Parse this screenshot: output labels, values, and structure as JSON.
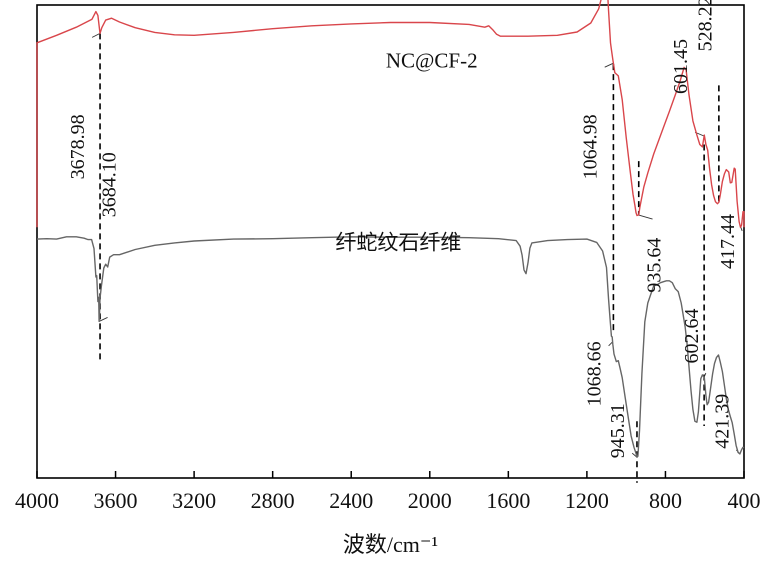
{
  "chart_data": {
    "type": "line",
    "xlabel": "波数/cm⁻¹",
    "ylabel": "",
    "xlim": [
      4000,
      400
    ],
    "x_reversed": true,
    "xticks": [
      4000,
      3600,
      3200,
      2800,
      2400,
      2000,
      1600,
      1200,
      800,
      400
    ],
    "xtick_labels": [
      "4000",
      "3600",
      "3200",
      "2800",
      "2400",
      "2000",
      "1600",
      "1200",
      "800",
      "400"
    ],
    "ylim": [
      0,
      100
    ],
    "grid": false,
    "colors": {
      "series_top": "#d9464b",
      "series_bottom": "#666666",
      "axis": "#000000",
      "marker_line": "#000000"
    },
    "series": [
      {
        "name": "NC@CF-2",
        "color": "#d9464b",
        "points": [
          [
            4000,
            53
          ],
          [
            4000,
            92
          ],
          [
            3900,
            93.6
          ],
          [
            3800,
            95.3
          ],
          [
            3720,
            97
          ],
          [
            3700,
            98.6
          ],
          [
            3690,
            97.8
          ],
          [
            3679,
            94
          ],
          [
            3670,
            95.2
          ],
          [
            3650,
            96.8
          ],
          [
            3620,
            97.2
          ],
          [
            3580,
            96.4
          ],
          [
            3500,
            95.2
          ],
          [
            3400,
            94.2
          ],
          [
            3300,
            93.7
          ],
          [
            3200,
            93.6
          ],
          [
            3000,
            94.2
          ],
          [
            2800,
            95
          ],
          [
            2600,
            95.6
          ],
          [
            2400,
            96
          ],
          [
            2200,
            96.3
          ],
          [
            2000,
            96.3
          ],
          [
            1800,
            95.9
          ],
          [
            1720,
            95.3
          ],
          [
            1700,
            95.6
          ],
          [
            1680,
            94.8
          ],
          [
            1660,
            93.8
          ],
          [
            1640,
            93.4
          ],
          [
            1500,
            93.4
          ],
          [
            1350,
            93.6
          ],
          [
            1250,
            94.3
          ],
          [
            1180,
            96.2
          ],
          [
            1140,
            99.2
          ],
          [
            1120,
            102.4
          ],
          [
            1108,
            104.3
          ],
          [
            1100,
            104.8
          ],
          [
            1096,
            103.8
          ],
          [
            1090,
            99
          ],
          [
            1080,
            92
          ],
          [
            1075,
            90.6
          ],
          [
            1068,
            88.5
          ],
          [
            1062,
            86.9
          ],
          [
            1058,
            85.7
          ],
          [
            1040,
            85
          ],
          [
            1020,
            80
          ],
          [
            1000,
            72
          ],
          [
            980,
            65
          ],
          [
            965,
            60
          ],
          [
            955,
            57.5
          ],
          [
            950,
            56.1
          ],
          [
            945,
            55.5
          ],
          [
            936,
            55.6
          ],
          [
            930,
            57.3
          ],
          [
            910,
            61.5
          ],
          [
            890,
            64.5
          ],
          [
            860,
            68.5
          ],
          [
            820,
            73
          ],
          [
            780,
            77.5
          ],
          [
            750,
            81
          ],
          [
            725,
            84
          ],
          [
            705,
            86.8
          ],
          [
            695,
            86.3
          ],
          [
            680,
            81
          ],
          [
            660,
            75.5
          ],
          [
            640,
            72.5
          ],
          [
            625,
            70.5
          ],
          [
            612,
            70
          ],
          [
            602,
            72.5
          ],
          [
            594,
            70.5
          ],
          [
            585,
            69.3
          ],
          [
            575,
            65.4
          ],
          [
            565,
            62
          ],
          [
            555,
            59.7
          ],
          [
            545,
            58.4
          ],
          [
            535,
            58
          ],
          [
            528,
            58.3
          ],
          [
            520,
            60
          ],
          [
            510,
            62.7
          ],
          [
            500,
            64.3
          ],
          [
            490,
            65.2
          ],
          [
            478,
            64.7
          ],
          [
            470,
            62.4
          ],
          [
            462,
            62.5
          ],
          [
            450,
            65.5
          ],
          [
            445,
            65.3
          ],
          [
            435,
            58.5
          ],
          [
            425,
            54.2
          ],
          [
            418,
            53
          ],
          [
            412,
            53.5
          ],
          [
            405,
            56.3
          ],
          [
            400,
            56.3
          ],
          [
            400,
            53
          ]
        ]
      },
      {
        "name": "纤蛇纹石纤维",
        "color": "#666666",
        "points": [
          [
            4000,
            50.5
          ],
          [
            3950,
            50.6
          ],
          [
            3900,
            50.5
          ],
          [
            3850,
            51
          ],
          [
            3800,
            51
          ],
          [
            3760,
            50.7
          ],
          [
            3740,
            50.4
          ],
          [
            3722,
            50.4
          ],
          [
            3710,
            48.5
          ],
          [
            3700,
            42.5
          ],
          [
            3696,
            42.8
          ],
          [
            3690,
            37.3
          ],
          [
            3686,
            38.2
          ],
          [
            3684,
            33.1
          ],
          [
            3682,
            34.5
          ],
          [
            3679,
            38
          ],
          [
            3672,
            40.6
          ],
          [
            3660,
            44.4
          ],
          [
            3650,
            45.2
          ],
          [
            3640,
            44.6
          ],
          [
            3630,
            46.7
          ],
          [
            3610,
            47.2
          ],
          [
            3580,
            47.2
          ],
          [
            3500,
            48.3
          ],
          [
            3400,
            49.2
          ],
          [
            3300,
            49.7
          ],
          [
            3200,
            50.1
          ],
          [
            3000,
            50.5
          ],
          [
            2800,
            50.6
          ],
          [
            2600,
            50.8
          ],
          [
            2400,
            51
          ],
          [
            2200,
            50.9
          ],
          [
            2000,
            50.9
          ],
          [
            1800,
            50.8
          ],
          [
            1650,
            50.6
          ],
          [
            1560,
            50.2
          ],
          [
            1540,
            49
          ],
          [
            1530,
            47.1
          ],
          [
            1520,
            44
          ],
          [
            1510,
            43.2
          ],
          [
            1500,
            45.5
          ],
          [
            1490,
            48.6
          ],
          [
            1480,
            49.7
          ],
          [
            1400,
            50.2
          ],
          [
            1300,
            50.4
          ],
          [
            1200,
            50.5
          ],
          [
            1150,
            49.8
          ],
          [
            1120,
            48
          ],
          [
            1100,
            44.5
          ],
          [
            1090,
            38
          ],
          [
            1082,
            33.5
          ],
          [
            1075,
            30
          ],
          [
            1071,
            29.8
          ],
          [
            1068,
            28.3
          ],
          [
            1062,
            26.2
          ],
          [
            1050,
            24.6
          ],
          [
            1040,
            24.8
          ],
          [
            1030,
            23
          ],
          [
            1020,
            21.2
          ],
          [
            1005,
            17
          ],
          [
            990,
            13
          ],
          [
            975,
            8.9
          ],
          [
            960,
            6.5
          ],
          [
            950,
            5.2
          ],
          [
            945,
            4.4
          ],
          [
            940,
            4.6
          ],
          [
            932,
            10
          ],
          [
            920,
            22
          ],
          [
            905,
            33
          ],
          [
            890,
            37
          ],
          [
            875,
            38.8
          ],
          [
            860,
            40.6
          ],
          [
            845,
            40.8
          ],
          [
            825,
            41.3
          ],
          [
            810,
            41.5
          ],
          [
            795,
            41.7
          ],
          [
            780,
            41.7
          ],
          [
            765,
            41.3
          ],
          [
            750,
            40
          ],
          [
            735,
            39.4
          ],
          [
            720,
            37
          ],
          [
            700,
            32
          ],
          [
            690,
            28.5
          ],
          [
            680,
            23.5
          ],
          [
            670,
            18.5
          ],
          [
            660,
            14.5
          ],
          [
            650,
            12
          ],
          [
            640,
            11.8
          ],
          [
            632,
            14
          ],
          [
            620,
            21
          ],
          [
            612,
            21.8
          ],
          [
            602,
            21.3
          ],
          [
            594,
            17.5
          ],
          [
            588,
            15.5
          ],
          [
            580,
            16
          ],
          [
            570,
            19
          ],
          [
            560,
            22
          ],
          [
            550,
            24.2
          ],
          [
            540,
            25.5
          ],
          [
            530,
            26
          ],
          [
            520,
            24.4
          ],
          [
            510,
            22.5
          ],
          [
            500,
            19.6
          ],
          [
            490,
            16.8
          ],
          [
            480,
            14.5
          ],
          [
            470,
            13
          ],
          [
            460,
            11.7
          ],
          [
            450,
            9.3
          ],
          [
            440,
            6.9
          ],
          [
            430,
            5.4
          ],
          [
            421,
            5.1
          ],
          [
            412,
            6
          ],
          [
            405,
            6.5
          ],
          [
            400,
            6.4
          ]
        ]
      }
    ],
    "series_labels": [
      {
        "text": "NC@CF-2",
        "series": 0
      },
      {
        "text": "纤蛇纹石纤维",
        "series": 1
      }
    ],
    "annotations": [
      {
        "text": "3678.98",
        "series": 0,
        "x": 3679,
        "marker_y": [
          94,
          25
        ],
        "text_anchor_x": 3760,
        "text_anchor_y": 70
      },
      {
        "text": "3684.10",
        "series": 1,
        "x": 3684,
        "text_anchor_x": 3600,
        "text_anchor_y": 62
      },
      {
        "text": "1064.98",
        "series": 0,
        "x": 1065,
        "marker_y": [
          87.5,
          31
        ],
        "text_anchor_x": 1150,
        "text_anchor_y": 70
      },
      {
        "text": "1068.66",
        "series": 1,
        "x": 1069,
        "text_anchor_x": 1130,
        "text_anchor_y": 22
      },
      {
        "text": "935.64",
        "series": 0,
        "x": 936,
        "marker_y": [
          67,
          55.6
        ],
        "text_anchor_x": 825,
        "text_anchor_y": 45
      },
      {
        "text": "945.31",
        "series": 1,
        "x": 945,
        "marker_y": [
          12,
          -1
        ],
        "text_anchor_x": 1010,
        "text_anchor_y": 10
      },
      {
        "text": "601.45",
        "series": 0,
        "x": 601,
        "text_anchor_x": 690,
        "text_anchor_y": 87
      },
      {
        "text": "602.64",
        "series": 1,
        "x": 603,
        "marker_y": [
          70.5,
          11
        ],
        "text_anchor_x": 635,
        "text_anchor_y": 30
      },
      {
        "text": "528.22",
        "series": 0,
        "x": 528,
        "marker_y": [
          83,
          58.3
        ],
        "text_anchor_x": 565,
        "text_anchor_y": 96
      },
      {
        "text": "417.44",
        "series": 0,
        "x": 417,
        "text_anchor_x": 450,
        "text_anchor_y": 50
      },
      {
        "text": "421.39",
        "series": 1,
        "x": 421,
        "text_anchor_x": 480,
        "text_anchor_y": 12
      }
    ]
  }
}
